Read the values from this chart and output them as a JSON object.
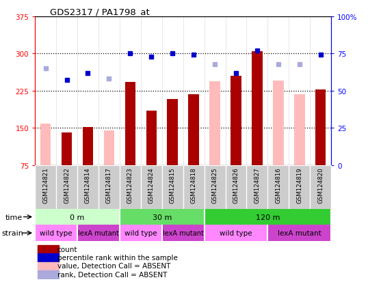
{
  "title": "GDS2317 / PA1798_at",
  "samples": [
    "GSM124821",
    "GSM124822",
    "GSM124814",
    "GSM124817",
    "GSM124823",
    "GSM124824",
    "GSM124815",
    "GSM124818",
    "GSM124825",
    "GSM124826",
    "GSM124827",
    "GSM124816",
    "GSM124819",
    "GSM124820"
  ],
  "count_values": [
    null,
    140,
    152,
    null,
    243,
    185,
    208,
    218,
    null,
    255,
    305,
    null,
    null,
    228
  ],
  "count_absent": [
    158,
    null,
    null,
    145,
    null,
    null,
    null,
    null,
    244,
    null,
    null,
    245,
    218,
    null
  ],
  "rank_present": [
    null,
    57,
    62,
    null,
    75,
    73,
    75,
    74,
    null,
    62,
    77,
    null,
    null,
    74
  ],
  "rank_absent": [
    65,
    null,
    null,
    58,
    null,
    null,
    null,
    null,
    68,
    null,
    null,
    68,
    68,
    null
  ],
  "ylim_left": [
    75,
    375
  ],
  "ylim_right": [
    0,
    100
  ],
  "yticks_left": [
    75,
    150,
    225,
    300,
    375
  ],
  "yticks_right": [
    0,
    25,
    50,
    75,
    100
  ],
  "hlines": [
    150,
    225,
    300
  ],
  "time_groups": [
    {
      "label": "0 m",
      "start": 0,
      "end": 4,
      "color": "#ccffcc"
    },
    {
      "label": "30 m",
      "start": 4,
      "end": 8,
      "color": "#66dd66"
    },
    {
      "label": "120 m",
      "start": 8,
      "end": 14,
      "color": "#33cc33"
    }
  ],
  "strain_groups": [
    {
      "label": "wild type",
      "start": 0,
      "end": 2,
      "color": "#ff88ff"
    },
    {
      "label": "lexA mutant",
      "start": 2,
      "end": 4,
      "color": "#cc44cc"
    },
    {
      "label": "wild type",
      "start": 4,
      "end": 6,
      "color": "#ff88ff"
    },
    {
      "label": "lexA mutant",
      "start": 6,
      "end": 8,
      "color": "#cc44cc"
    },
    {
      "label": "wild type",
      "start": 8,
      "end": 11,
      "color": "#ff88ff"
    },
    {
      "label": "lexA mutant",
      "start": 11,
      "end": 14,
      "color": "#cc44cc"
    }
  ],
  "bar_width": 0.5,
  "color_count_present": "#aa0000",
  "color_count_absent": "#ffbbbb",
  "color_rank_present": "#0000cc",
  "color_rank_absent": "#aaaadd",
  "bg_color": "#ffffff",
  "sample_bg": "#cccccc",
  "figsize": [
    5.38,
    4.14
  ],
  "dpi": 100
}
